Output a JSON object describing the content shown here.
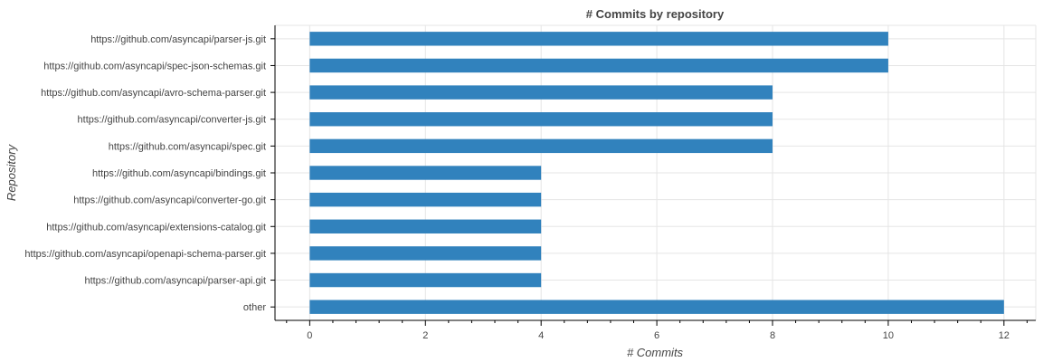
{
  "chart_data": {
    "type": "bar",
    "orientation": "horizontal",
    "title": "# Commits by repository",
    "xlabel": "# Commits",
    "ylabel": "Repository",
    "categories": [
      "https://github.com/asyncapi/parser-js.git",
      "https://github.com/asyncapi/spec-json-schemas.git",
      "https://github.com/asyncapi/avro-schema-parser.git",
      "https://github.com/asyncapi/converter-js.git",
      "https://github.com/asyncapi/spec.git",
      "https://github.com/asyncapi/bindings.git",
      "https://github.com/asyncapi/converter-go.git",
      "https://github.com/asyncapi/extensions-catalog.git",
      "https://github.com/asyncapi/openapi-schema-parser.git",
      "https://github.com/asyncapi/parser-api.git",
      "other"
    ],
    "values": [
      10,
      10,
      8,
      8,
      8,
      4,
      4,
      4,
      4,
      4,
      12
    ],
    "xlim": [
      -0.6,
      12.55
    ],
    "xticks": [
      0,
      2,
      4,
      6,
      8,
      10,
      12
    ],
    "grid": true,
    "bar_color": "#3182bd"
  }
}
